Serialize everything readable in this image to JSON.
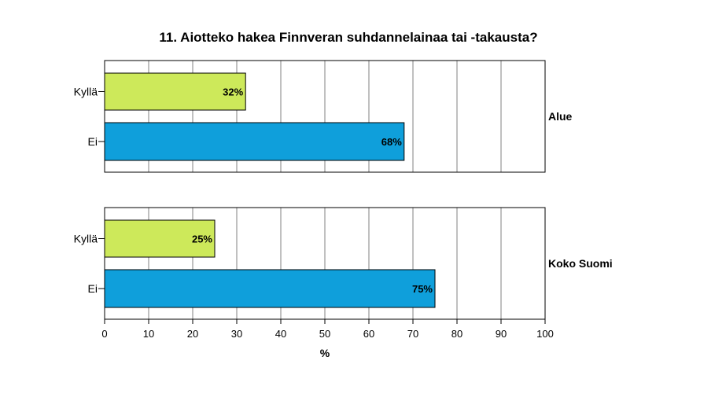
{
  "chart_data": {
    "type": "bar",
    "orientation": "horizontal",
    "title": "11. Aiotteko hakea Finnveran suhdannelainaa tai -takausta?",
    "xlabel": "%",
    "ylabel": "",
    "xlim": [
      0,
      100
    ],
    "x_ticks": [
      0,
      10,
      20,
      30,
      40,
      50,
      60,
      70,
      80,
      90,
      100
    ],
    "grid": true,
    "categories": [
      "Kyllä",
      "Ei"
    ],
    "category_colors": [
      "#cde95a",
      "#0f9fdb"
    ],
    "panels": [
      {
        "name": "Alue",
        "values": [
          32,
          68
        ],
        "value_labels": [
          "32%",
          "68%"
        ]
      },
      {
        "name": "Koko Suomi",
        "values": [
          25,
          75
        ],
        "value_labels": [
          "25%",
          "75%"
        ]
      }
    ]
  }
}
